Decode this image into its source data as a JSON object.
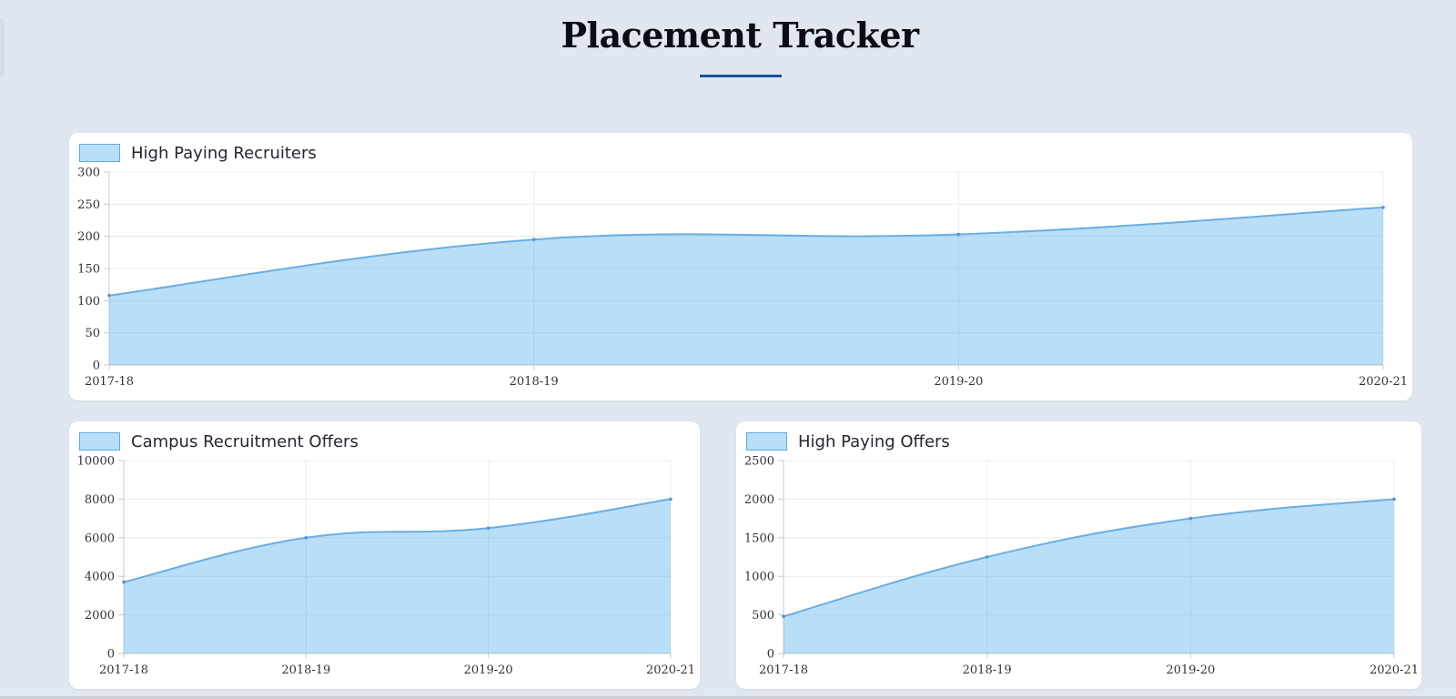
{
  "page": {
    "title": "Placement Tracker"
  },
  "colors": {
    "fill": "rgba(54,162,235,0.35)",
    "line": "#6aaee3",
    "accent": "#1d4f91"
  },
  "chart_data": [
    {
      "type": "area",
      "label": "High Paying Recruiters",
      "categories": [
        "2017-18",
        "2018-19",
        "2019-20",
        "2020-21"
      ],
      "values": [
        108,
        195,
        203,
        245
      ],
      "ylim": [
        0,
        300
      ],
      "yticks": [
        0,
        50,
        100,
        150,
        200,
        250,
        300
      ],
      "grid": true,
      "legend": "top-left"
    },
    {
      "type": "area",
      "label": "Campus Recruitment Offers",
      "categories": [
        "2017-18",
        "2018-19",
        "2019-20",
        "2020-21"
      ],
      "values": [
        3700,
        6000,
        6500,
        8000
      ],
      "ylim": [
        0,
        10000
      ],
      "yticks": [
        0,
        2000,
        4000,
        6000,
        8000,
        10000
      ],
      "grid": true,
      "legend": "top-left"
    },
    {
      "type": "area",
      "label": "High Paying Offers",
      "categories": [
        "2017-18",
        "2018-19",
        "2019-20",
        "2020-21"
      ],
      "values": [
        480,
        1250,
        1750,
        2000
      ],
      "ylim": [
        0,
        2500
      ],
      "yticks": [
        0,
        500,
        1000,
        1500,
        2000,
        2500
      ],
      "grid": true,
      "legend": "top-left"
    }
  ]
}
